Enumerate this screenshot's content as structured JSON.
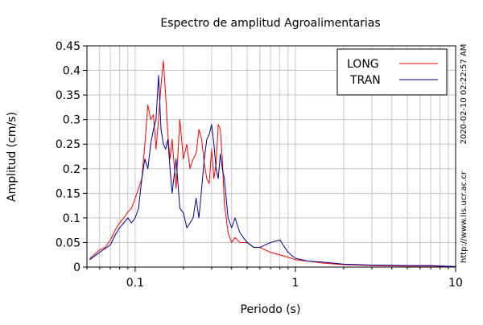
{
  "chart_data": {
    "type": "line",
    "title": "Espectro de amplitud Agroalimentarias",
    "xlabel": "Periodo (s)",
    "ylabel": "Amplitud (cm/s)",
    "x_scale": "log",
    "xlim": [
      0.05,
      10
    ],
    "ylim": [
      0,
      0.45
    ],
    "grid": true,
    "legend_position": "top-right",
    "x_tick_labels": [
      {
        "value": 0.1,
        "label": "0.1"
      },
      {
        "value": 1,
        "label": "1"
      },
      {
        "value": 10,
        "label": "10"
      }
    ],
    "y_tick_labels": [
      "0",
      "0.05",
      "0.1",
      "0.15",
      "0.2",
      "0.25",
      "0.3",
      "0.35",
      "0.4",
      "0.45"
    ],
    "side_labels": {
      "timestamp": "2020-02-10 02:22:57 AM",
      "url": "http://www.lis.ucr.ac.cr"
    },
    "series": [
      {
        "name": "LONG",
        "color": "#ff0000",
        "x": [
          0.052,
          0.06,
          0.065,
          0.07,
          0.075,
          0.08,
          0.085,
          0.09,
          0.095,
          0.1,
          0.105,
          0.11,
          0.115,
          0.12,
          0.125,
          0.13,
          0.135,
          0.14,
          0.145,
          0.15,
          0.155,
          0.16,
          0.165,
          0.17,
          0.18,
          0.19,
          0.2,
          0.21,
          0.22,
          0.23,
          0.24,
          0.25,
          0.26,
          0.27,
          0.28,
          0.29,
          0.3,
          0.31,
          0.32,
          0.33,
          0.34,
          0.35,
          0.36,
          0.38,
          0.4,
          0.42,
          0.45,
          0.5,
          0.55,
          0.6,
          0.7,
          0.8,
          0.9,
          1.0,
          1.2,
          1.5,
          2.0,
          3.0,
          5.0,
          7.0,
          10.0
        ],
        "y": [
          0.017,
          0.035,
          0.04,
          0.055,
          0.075,
          0.09,
          0.1,
          0.112,
          0.12,
          0.14,
          0.16,
          0.18,
          0.25,
          0.33,
          0.3,
          0.31,
          0.24,
          0.3,
          0.37,
          0.42,
          0.35,
          0.27,
          0.22,
          0.26,
          0.16,
          0.3,
          0.22,
          0.25,
          0.2,
          0.22,
          0.23,
          0.28,
          0.26,
          0.21,
          0.18,
          0.17,
          0.24,
          0.18,
          0.21,
          0.29,
          0.28,
          0.22,
          0.13,
          0.07,
          0.05,
          0.06,
          0.05,
          0.05,
          0.04,
          0.04,
          0.03,
          0.025,
          0.02,
          0.015,
          0.012,
          0.008,
          0.005,
          0.003,
          0.002,
          0.002,
          0.001
        ]
      },
      {
        "name": "TRAN",
        "color": "#000099",
        "x": [
          0.052,
          0.06,
          0.065,
          0.07,
          0.075,
          0.08,
          0.085,
          0.09,
          0.095,
          0.1,
          0.105,
          0.11,
          0.115,
          0.12,
          0.125,
          0.13,
          0.135,
          0.14,
          0.145,
          0.15,
          0.155,
          0.16,
          0.165,
          0.17,
          0.18,
          0.19,
          0.2,
          0.21,
          0.22,
          0.23,
          0.24,
          0.25,
          0.26,
          0.27,
          0.28,
          0.29,
          0.3,
          0.31,
          0.32,
          0.33,
          0.34,
          0.35,
          0.36,
          0.38,
          0.4,
          0.42,
          0.45,
          0.5,
          0.55,
          0.6,
          0.7,
          0.8,
          0.9,
          1.0,
          1.2,
          1.5,
          2.0,
          3.0,
          5.0,
          7.0,
          10.0
        ],
        "y": [
          0.015,
          0.03,
          0.038,
          0.045,
          0.065,
          0.08,
          0.09,
          0.1,
          0.09,
          0.1,
          0.12,
          0.18,
          0.22,
          0.2,
          0.25,
          0.28,
          0.3,
          0.39,
          0.28,
          0.25,
          0.24,
          0.26,
          0.2,
          0.15,
          0.22,
          0.12,
          0.11,
          0.08,
          0.09,
          0.1,
          0.14,
          0.1,
          0.16,
          0.22,
          0.26,
          0.27,
          0.29,
          0.25,
          0.2,
          0.18,
          0.23,
          0.2,
          0.18,
          0.1,
          0.08,
          0.1,
          0.07,
          0.05,
          0.04,
          0.04,
          0.05,
          0.055,
          0.03,
          0.018,
          0.012,
          0.01,
          0.006,
          0.004,
          0.003,
          0.003,
          0.001
        ]
      }
    ]
  }
}
